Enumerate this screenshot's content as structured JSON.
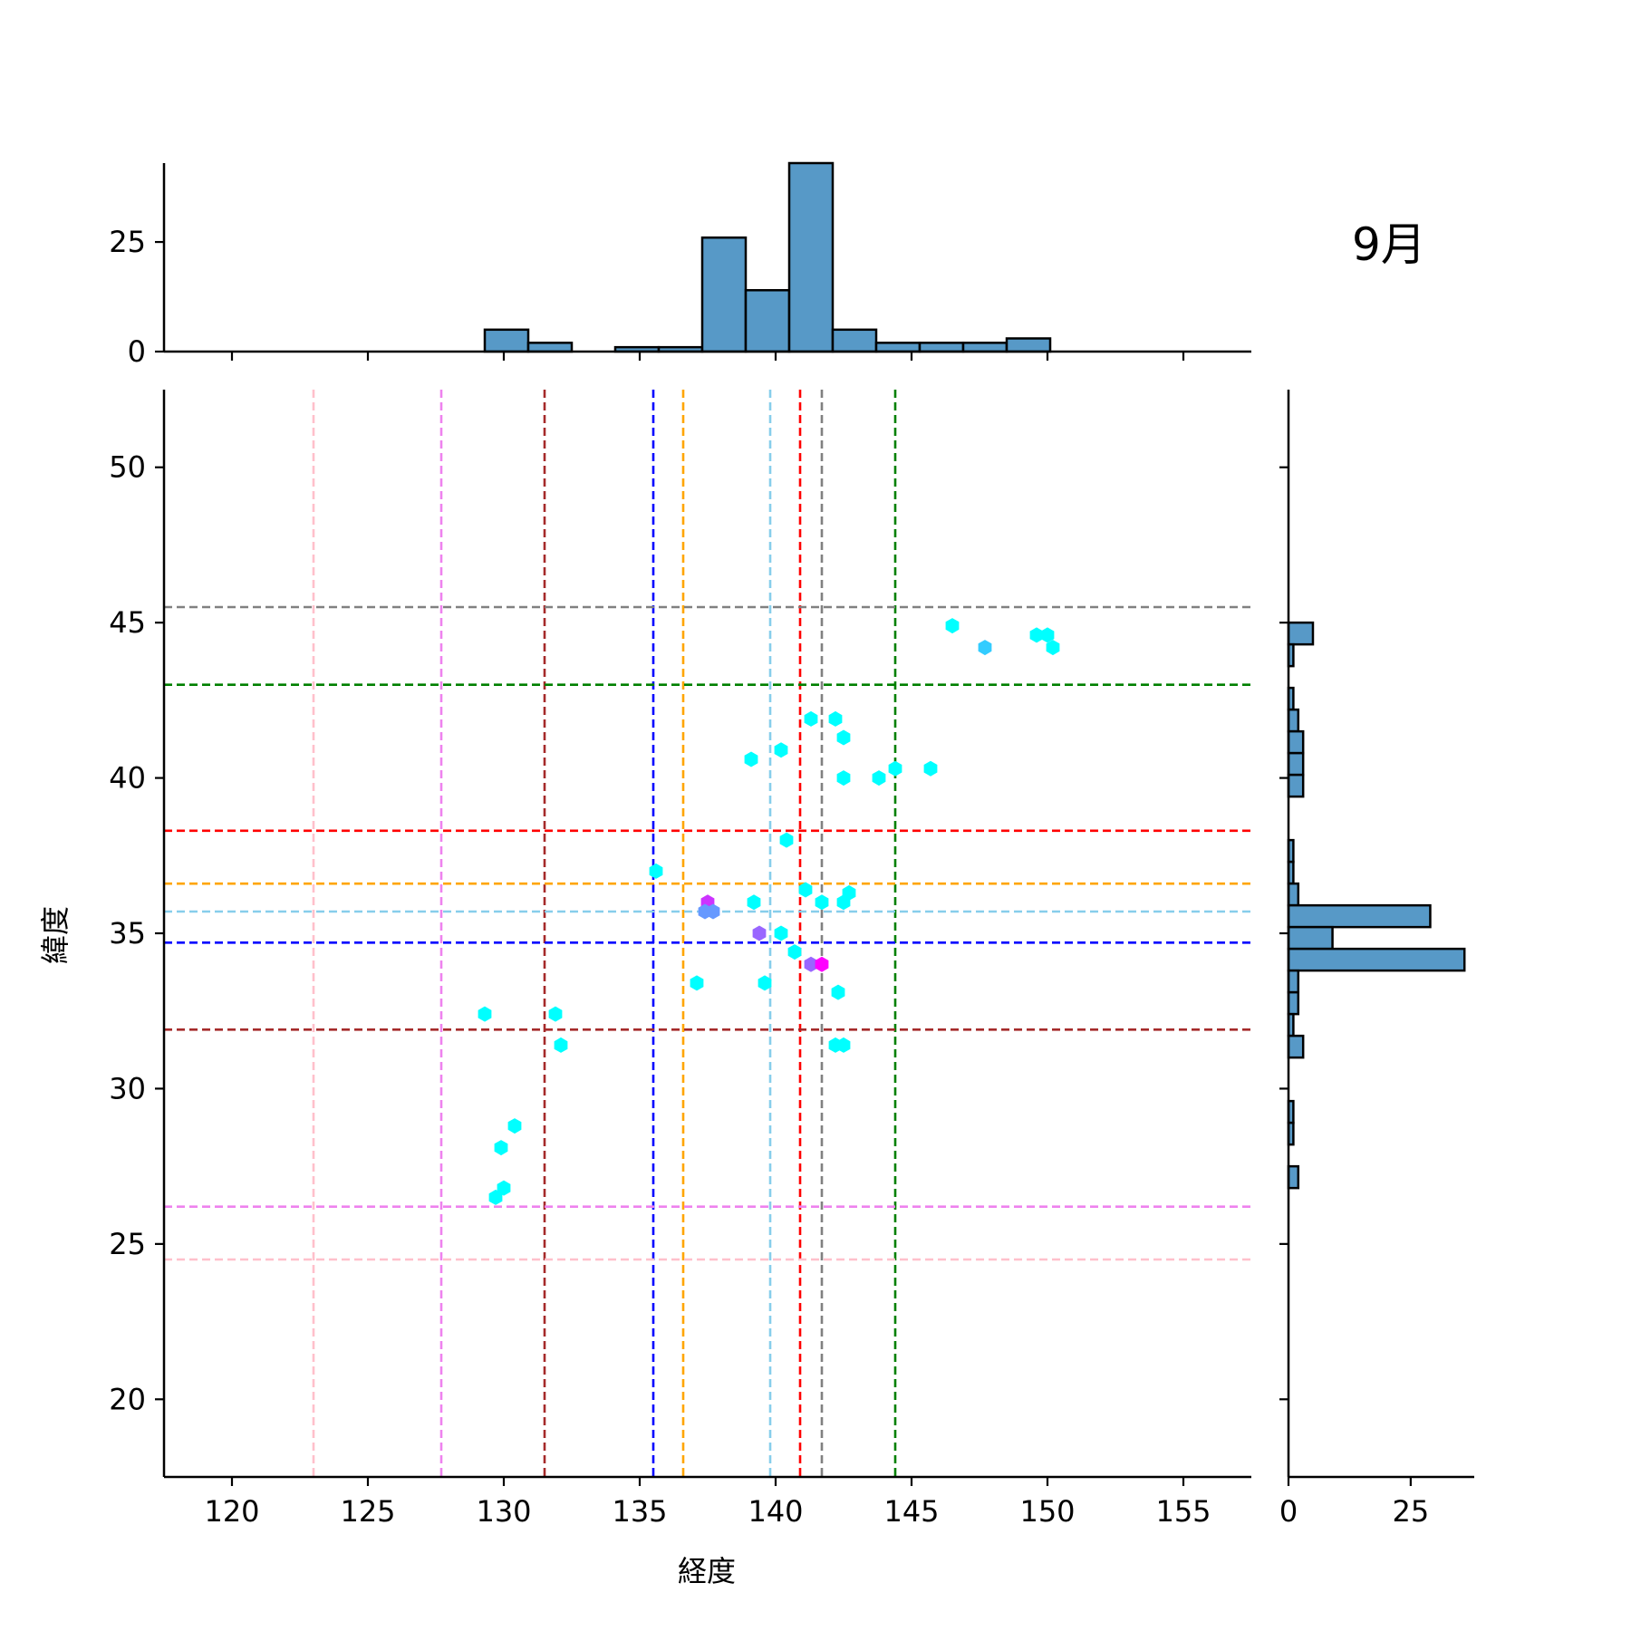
{
  "chart_data": {
    "type": "scatter",
    "title": "9月",
    "xlabel": "経度",
    "ylabel": "緯度",
    "xlim": [
      117.5,
      157.5
    ],
    "ylim": [
      17.5,
      52.5
    ],
    "xticks": [
      120,
      125,
      130,
      135,
      140,
      145,
      150,
      155
    ],
    "yticks": [
      20,
      25,
      30,
      35,
      40,
      45,
      50
    ],
    "grid": false,
    "points": [
      {
        "x": 146.5,
        "y": 44.9,
        "color": "#00ffff"
      },
      {
        "x": 147.7,
        "y": 44.2,
        "color": "#33ccff"
      },
      {
        "x": 149.6,
        "y": 44.6,
        "color": "#00ffff"
      },
      {
        "x": 150.0,
        "y": 44.6,
        "color": "#00ffff"
      },
      {
        "x": 150.2,
        "y": 44.2,
        "color": "#00ffff"
      },
      {
        "x": 141.3,
        "y": 41.9,
        "color": "#00ffff"
      },
      {
        "x": 142.2,
        "y": 41.9,
        "color": "#00ffff"
      },
      {
        "x": 142.5,
        "y": 41.3,
        "color": "#00ffff"
      },
      {
        "x": 140.2,
        "y": 40.9,
        "color": "#00ffff"
      },
      {
        "x": 139.1,
        "y": 40.6,
        "color": "#00ffff"
      },
      {
        "x": 142.5,
        "y": 40.0,
        "color": "#00ffff"
      },
      {
        "x": 143.8,
        "y": 40.0,
        "color": "#00ffff"
      },
      {
        "x": 144.4,
        "y": 40.3,
        "color": "#00ffff"
      },
      {
        "x": 145.7,
        "y": 40.3,
        "color": "#00ffff"
      },
      {
        "x": 140.4,
        "y": 38.0,
        "color": "#00ffff"
      },
      {
        "x": 135.6,
        "y": 37.0,
        "color": "#00ffff"
      },
      {
        "x": 141.1,
        "y": 36.4,
        "color": "#00ffff"
      },
      {
        "x": 142.7,
        "y": 36.3,
        "color": "#00ffff"
      },
      {
        "x": 139.2,
        "y": 36.0,
        "color": "#00ffff"
      },
      {
        "x": 141.7,
        "y": 36.0,
        "color": "#00ffff"
      },
      {
        "x": 142.5,
        "y": 36.0,
        "color": "#00ffff"
      },
      {
        "x": 137.5,
        "y": 36.0,
        "color": "#cc33ff"
      },
      {
        "x": 137.4,
        "y": 35.7,
        "color": "#6699ff"
      },
      {
        "x": 137.7,
        "y": 35.7,
        "color": "#6699ff"
      },
      {
        "x": 139.4,
        "y": 35.0,
        "color": "#9966ff"
      },
      {
        "x": 140.2,
        "y": 35.0,
        "color": "#00ffff"
      },
      {
        "x": 140.7,
        "y": 34.4,
        "color": "#00ffff"
      },
      {
        "x": 141.3,
        "y": 34.0,
        "color": "#9966ff"
      },
      {
        "x": 141.7,
        "y": 34.0,
        "color": "#ff00ff"
      },
      {
        "x": 137.1,
        "y": 33.4,
        "color": "#00ffff"
      },
      {
        "x": 139.6,
        "y": 33.4,
        "color": "#00ffff"
      },
      {
        "x": 142.3,
        "y": 33.1,
        "color": "#00ffff"
      },
      {
        "x": 129.3,
        "y": 32.4,
        "color": "#00ffff"
      },
      {
        "x": 131.9,
        "y": 32.4,
        "color": "#00ffff"
      },
      {
        "x": 132.1,
        "y": 31.4,
        "color": "#00ffff"
      },
      {
        "x": 142.2,
        "y": 31.4,
        "color": "#00ffff"
      },
      {
        "x": 142.5,
        "y": 31.4,
        "color": "#00ffff"
      },
      {
        "x": 130.4,
        "y": 28.8,
        "color": "#00ffff"
      },
      {
        "x": 129.9,
        "y": 28.1,
        "color": "#00ffff"
      },
      {
        "x": 130.0,
        "y": 26.8,
        "color": "#00ffff"
      },
      {
        "x": 129.7,
        "y": 26.5,
        "color": "#00ffff"
      }
    ],
    "vlines": [
      {
        "x": 123.0,
        "color": "#ffc0cb"
      },
      {
        "x": 127.7,
        "color": "#ee82ee"
      },
      {
        "x": 131.5,
        "color": "#a52a2a"
      },
      {
        "x": 135.5,
        "color": "#0000ff"
      },
      {
        "x": 136.6,
        "color": "#ffa500"
      },
      {
        "x": 139.8,
        "color": "#87ceeb"
      },
      {
        "x": 140.9,
        "color": "#ff0000"
      },
      {
        "x": 141.7,
        "color": "#808080"
      },
      {
        "x": 144.4,
        "color": "#008000"
      }
    ],
    "hlines": [
      {
        "y": 45.5,
        "color": "#808080"
      },
      {
        "y": 43.0,
        "color": "#008000"
      },
      {
        "y": 38.3,
        "color": "#ff0000"
      },
      {
        "y": 36.6,
        "color": "#ffa500"
      },
      {
        "y": 35.7,
        "color": "#87ceeb"
      },
      {
        "y": 34.7,
        "color": "#0000ff"
      },
      {
        "y": 31.9,
        "color": "#a52a2a"
      },
      {
        "y": 26.2,
        "color": "#ee82ee"
      },
      {
        "y": 24.5,
        "color": "#ffc0cb"
      }
    ],
    "marginal_x": {
      "ylim": [
        0,
        43
      ],
      "yticks": [
        0,
        25
      ],
      "bins": [
        {
          "x0": 129.3,
          "x1": 130.9,
          "count": 5
        },
        {
          "x0": 130.9,
          "x1": 132.5,
          "count": 2
        },
        {
          "x0": 132.5,
          "x1": 134.1,
          "count": 0
        },
        {
          "x0": 134.1,
          "x1": 135.7,
          "count": 1
        },
        {
          "x0": 135.7,
          "x1": 137.3,
          "count": 1
        },
        {
          "x0": 137.3,
          "x1": 138.9,
          "count": 26
        },
        {
          "x0": 138.9,
          "x1": 140.5,
          "count": 14
        },
        {
          "x0": 140.5,
          "x1": 142.1,
          "count": 43
        },
        {
          "x0": 142.1,
          "x1": 143.7,
          "count": 5
        },
        {
          "x0": 143.7,
          "x1": 145.3,
          "count": 2
        },
        {
          "x0": 145.3,
          "x1": 146.9,
          "count": 2
        },
        {
          "x0": 146.9,
          "x1": 148.5,
          "count": 2
        },
        {
          "x0": 148.5,
          "x1": 150.1,
          "count": 3
        }
      ]
    },
    "marginal_y": {
      "xlim": [
        0,
        38
      ],
      "xticks": [
        0,
        25
      ],
      "bins": [
        {
          "y0": 44.3,
          "y1": 45.0,
          "count": 5
        },
        {
          "y0": 43.6,
          "y1": 44.3,
          "count": 1
        },
        {
          "y0": 42.2,
          "y1": 42.9,
          "count": 1
        },
        {
          "y0": 41.5,
          "y1": 42.2,
          "count": 2
        },
        {
          "y0": 40.8,
          "y1": 41.5,
          "count": 3
        },
        {
          "y0": 40.1,
          "y1": 40.8,
          "count": 3
        },
        {
          "y0": 39.4,
          "y1": 40.1,
          "count": 3
        },
        {
          "y0": 37.3,
          "y1": 38.0,
          "count": 1
        },
        {
          "y0": 36.6,
          "y1": 37.3,
          "count": 1
        },
        {
          "y0": 35.9,
          "y1": 36.6,
          "count": 2
        },
        {
          "y0": 35.2,
          "y1": 35.9,
          "count": 29
        },
        {
          "y0": 34.5,
          "y1": 35.2,
          "count": 9
        },
        {
          "y0": 33.8,
          "y1": 34.5,
          "count": 36
        },
        {
          "y0": 33.1,
          "y1": 33.8,
          "count": 2
        },
        {
          "y0": 32.4,
          "y1": 33.1,
          "count": 2
        },
        {
          "y0": 31.7,
          "y1": 32.4,
          "count": 1
        },
        {
          "y0": 31.0,
          "y1": 31.7,
          "count": 3
        },
        {
          "y0": 28.9,
          "y1": 29.6,
          "count": 1
        },
        {
          "y0": 28.2,
          "y1": 28.9,
          "count": 1
        },
        {
          "y0": 26.8,
          "y1": 27.5,
          "count": 2
        }
      ]
    }
  },
  "colors": {
    "bar_fill": "#5799c7",
    "bar_edge": "#000000",
    "axis": "#000000"
  }
}
